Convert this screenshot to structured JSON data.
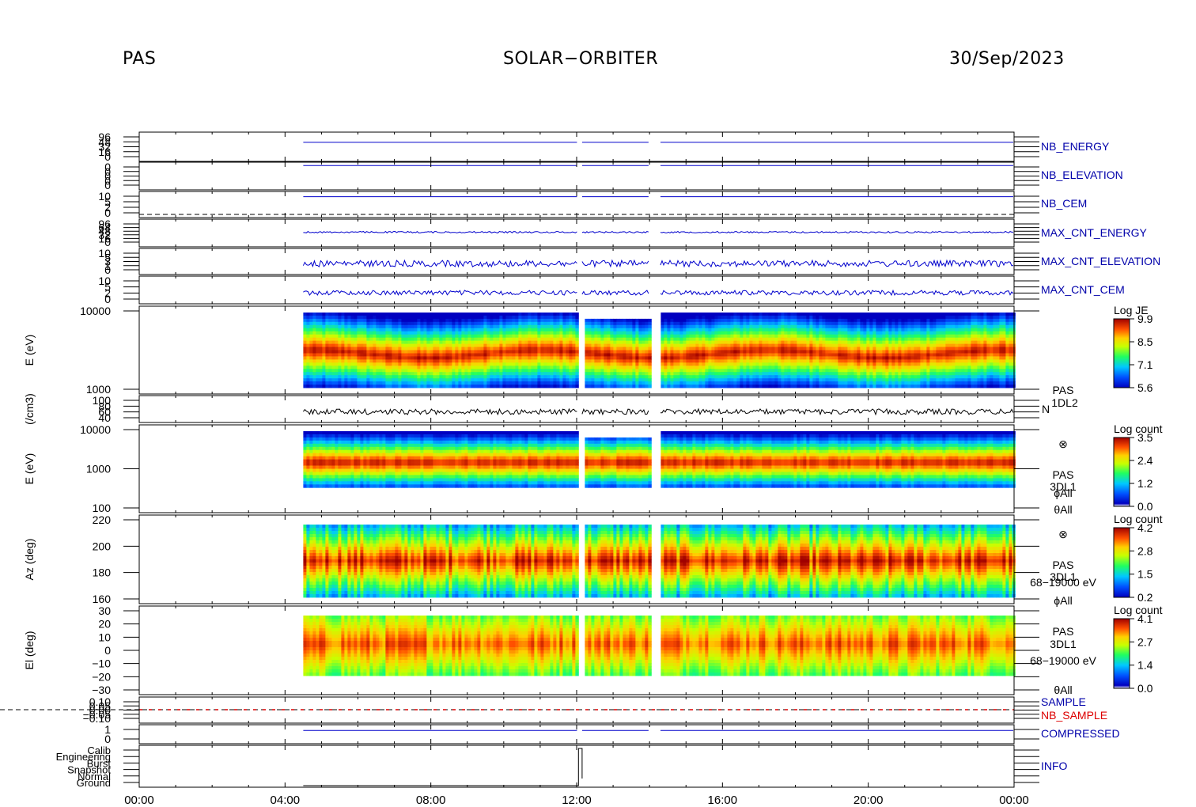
{
  "header": {
    "instrument": "PAS",
    "mission": "SOLAR−ORBITER",
    "date": "30/Sep/2023"
  },
  "colors": {
    "trace_blue": "#0000cc",
    "trace_black": "#000000",
    "label_red": "#dd0000",
    "label_blue": "#0000aa"
  },
  "chart_data": {
    "type": "heatmap",
    "x_axis": {
      "tick_labels": [
        "00:00",
        "04:00",
        "08:00",
        "12:00",
        "16:00",
        "20:00",
        "00:00"
      ],
      "range_hours": [
        0,
        24
      ]
    },
    "data_coverage_hours": [
      [
        4.5,
        12.05
      ],
      [
        12.15,
        14.0
      ],
      [
        14.3,
        24.0
      ]
    ],
    "panels": [
      {
        "id": "nb-energy",
        "type": "line",
        "right_label": "NB_ENERGY",
        "tick_labels": [
          "96",
          "48",
          "32",
          "16",
          "0"
        ],
        "color": "#0000cc"
      },
      {
        "id": "nb-elevation",
        "type": "line",
        "right_label": "NB_ELEVATION",
        "tick_labels": [
          "0",
          "0",
          "0",
          "0",
          "0"
        ],
        "color": "#0000cc"
      },
      {
        "id": "nb-cem",
        "type": "line",
        "right_label": "NB_CEM",
        "tick_labels": [
          "10",
          "5",
          "2",
          "0"
        ],
        "color": "#0000cc"
      },
      {
        "id": "max-cnt-energy",
        "type": "line",
        "right_label": "MAX_CNT_ENERGY",
        "tick_labels": [
          "96",
          "64",
          "48",
          "32",
          "16",
          "0"
        ],
        "color": "#0000cc"
      },
      {
        "id": "max-cnt-elevation",
        "type": "line",
        "right_label": "MAX_CNT_ELEVATION",
        "tick_labels": [
          "10",
          "5",
          "3",
          "1",
          "0"
        ],
        "color": "#0000cc"
      },
      {
        "id": "max-cnt-cem",
        "type": "line",
        "right_label": "MAX_CNT_CEM",
        "tick_labels": [
          "10",
          "5",
          "2",
          "0"
        ],
        "color": "#0000cc"
      },
      {
        "id": "e-1dl2",
        "type": "heatmap",
        "ylabel": "E (eV)",
        "tick_labels": [
          "10000",
          "1000"
        ],
        "colorbar_title": "Log JE",
        "colorbar_ticks": [
          "9.9",
          "8.5",
          "7.1",
          "5.6"
        ]
      },
      {
        "id": "density",
        "type": "line",
        "ylabel": "(/cm3)",
        "tick_labels": [
          "100",
          "80",
          "60",
          "40"
        ],
        "right_labels": [
          "PAS",
          "1DL2",
          "N"
        ],
        "color": "#000000"
      },
      {
        "id": "e-3dl1",
        "type": "heatmap",
        "ylabel": "E (eV)",
        "tick_labels": [
          "10000",
          "1000",
          "100"
        ],
        "colorbar_title": "Log count",
        "colorbar_ticks": [
          "3.5",
          "2.4",
          "1.2",
          "0.0"
        ],
        "right_labels": [
          "⊗",
          "PAS",
          "3DL1",
          "ϕAll",
          "θAll"
        ]
      },
      {
        "id": "az-3dl1",
        "type": "heatmap",
        "ylabel": "Az (deg)",
        "tick_labels": [
          "220",
          "200",
          "180",
          "160"
        ],
        "colorbar_title": "Log count",
        "colorbar_ticks": [
          "4.2",
          "2.8",
          "1.5",
          "0.2"
        ],
        "right_labels": [
          "⊗",
          "PAS",
          "3DL1",
          "68−19000 eV",
          "ϕAll"
        ]
      },
      {
        "id": "el-3dl1",
        "type": "heatmap",
        "ylabel": "El (deg)",
        "tick_labels": [
          "30",
          "20",
          "10",
          "0",
          "−10",
          "−20",
          "−30"
        ],
        "colorbar_title": "Log count",
        "colorbar_ticks": [
          "4.1",
          "2.7",
          "1.4",
          "0.0"
        ],
        "right_labels": [
          "PAS",
          "3DL1",
          "68−19000 eV",
          "θAll"
        ]
      },
      {
        "id": "sample",
        "type": "line",
        "tick_labels": [
          "0.10",
          "0.05",
          "0.00",
          "−0.05",
          "−0.10"
        ],
        "right_labels": [
          "SAMPLE",
          "NB_SAMPLE"
        ]
      },
      {
        "id": "compressed",
        "type": "line",
        "tick_labels": [
          "1",
          "0"
        ],
        "right_label": "COMPRESSED"
      },
      {
        "id": "info",
        "type": "line",
        "tick_labels": [
          "Calib",
          "Engineering",
          "Burst",
          "Snapshot",
          "Normal",
          "Ground"
        ],
        "right_label": "INFO"
      }
    ]
  }
}
